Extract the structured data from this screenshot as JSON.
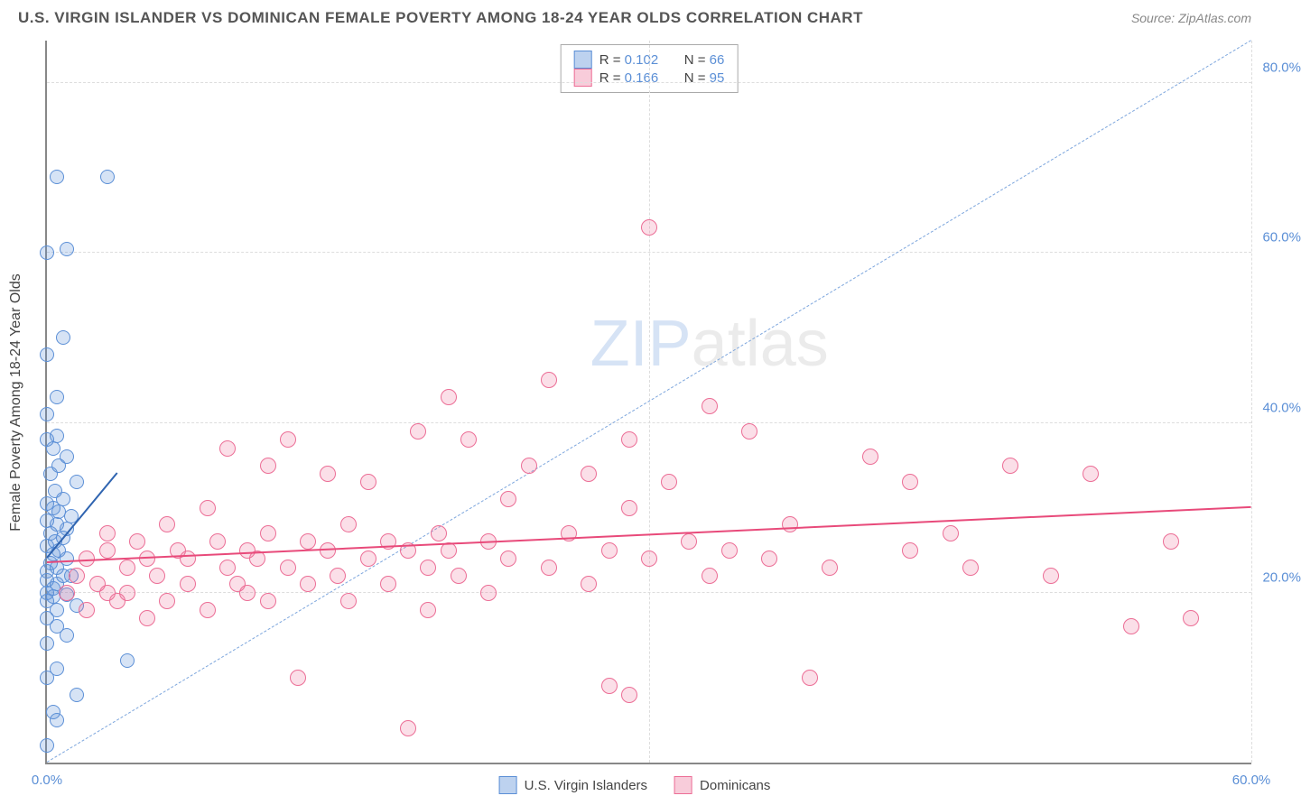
{
  "header": {
    "title": "U.S. VIRGIN ISLANDER VS DOMINICAN FEMALE POVERTY AMONG 18-24 YEAR OLDS CORRELATION CHART",
    "source": "Source: ZipAtlas.com"
  },
  "chart": {
    "type": "scatter",
    "y_axis_title": "Female Poverty Among 18-24 Year Olds",
    "xlim": [
      0,
      60
    ],
    "ylim": [
      0,
      85
    ],
    "x_ticks": [
      {
        "v": 0,
        "label": "0.0%"
      },
      {
        "v": 60,
        "label": "60.0%"
      }
    ],
    "y_ticks": [
      {
        "v": 20,
        "label": "20.0%"
      },
      {
        "v": 40,
        "label": "40.0%"
      },
      {
        "v": 60,
        "label": "60.0%"
      },
      {
        "v": 80,
        "label": "80.0%"
      }
    ],
    "gridlines_h": [
      20,
      40,
      60,
      80
    ],
    "gridlines_v": [
      30,
      60
    ],
    "background_color": "#ffffff",
    "grid_color": "#dddddd",
    "watermark": {
      "part1": "ZIP",
      "part2": "atlas"
    },
    "series": [
      {
        "name": "U.S. Virgin Islanders",
        "marker_size": 16,
        "fill_color": "rgba(91,143,214,0.25)",
        "stroke_color": "#5b8fd6",
        "stroke_width": 1.5,
        "regression": {
          "x1": 0,
          "y1": 24,
          "x2": 3.5,
          "y2": 34,
          "color": "#2f64b0",
          "width": 2.5,
          "dash": "solid"
        },
        "identity_line": {
          "x1": 0,
          "y1": 0,
          "x2": 60,
          "y2": 85,
          "color": "#7da6dd",
          "width": 1.2,
          "dash": "dashed"
        },
        "R": "0.102",
        "N": "66",
        "points": [
          [
            0,
            2
          ],
          [
            0.5,
            5
          ],
          [
            0.3,
            6
          ],
          [
            1.5,
            8
          ],
          [
            0,
            10
          ],
          [
            0.5,
            11
          ],
          [
            4,
            12
          ],
          [
            0,
            14
          ],
          [
            1,
            15
          ],
          [
            0.5,
            16
          ],
          [
            0,
            17
          ],
          [
            0.5,
            18
          ],
          [
            1.5,
            18.5
          ],
          [
            0,
            19
          ],
          [
            0.3,
            19.5
          ],
          [
            1,
            19.8
          ],
          [
            0,
            20
          ],
          [
            0.3,
            20.5
          ],
          [
            0.5,
            21
          ],
          [
            0,
            21.5
          ],
          [
            0.8,
            22
          ],
          [
            1.2,
            22
          ],
          [
            0,
            22.5
          ],
          [
            0.5,
            23
          ],
          [
            0.2,
            23.5
          ],
          [
            1,
            24
          ],
          [
            0.3,
            24.5
          ],
          [
            0.6,
            25
          ],
          [
            0,
            25.5
          ],
          [
            0.4,
            26
          ],
          [
            0.8,
            26.5
          ],
          [
            0.2,
            27
          ],
          [
            1,
            27.5
          ],
          [
            0.5,
            28
          ],
          [
            0,
            28.5
          ],
          [
            1.2,
            29
          ],
          [
            0.6,
            29.5
          ],
          [
            0.3,
            30
          ],
          [
            0,
            30.5
          ],
          [
            0.8,
            31
          ],
          [
            0.4,
            32
          ],
          [
            1.5,
            33
          ],
          [
            0.2,
            34
          ],
          [
            0.6,
            35
          ],
          [
            1,
            36
          ],
          [
            0.3,
            37
          ],
          [
            0,
            38
          ],
          [
            0.5,
            38.5
          ],
          [
            0,
            41
          ],
          [
            0.5,
            43
          ],
          [
            0,
            48
          ],
          [
            0.8,
            50
          ],
          [
            0,
            60
          ],
          [
            1,
            60.5
          ],
          [
            0.5,
            69
          ],
          [
            3,
            69
          ]
        ]
      },
      {
        "name": "Dominicans",
        "marker_size": 18,
        "fill_color": "rgba(236,110,150,0.22)",
        "stroke_color": "#ec6e96",
        "stroke_width": 1.5,
        "regression": {
          "x1": 0,
          "y1": 23.5,
          "x2": 60,
          "y2": 30,
          "color": "#e84a7a",
          "width": 2.5,
          "dash": "solid"
        },
        "R": "0.166",
        "N": "95",
        "points": [
          [
            1,
            20
          ],
          [
            1.5,
            22
          ],
          [
            2,
            18
          ],
          [
            2,
            24
          ],
          [
            2.5,
            21
          ],
          [
            3,
            20
          ],
          [
            3,
            25
          ],
          [
            3,
            27
          ],
          [
            3.5,
            19
          ],
          [
            4,
            23
          ],
          [
            4,
            20
          ],
          [
            4.5,
            26
          ],
          [
            5,
            17
          ],
          [
            5,
            24
          ],
          [
            5.5,
            22
          ],
          [
            6,
            19
          ],
          [
            6,
            28
          ],
          [
            6.5,
            25
          ],
          [
            7,
            21
          ],
          [
            7,
            24
          ],
          [
            8,
            30
          ],
          [
            8,
            18
          ],
          [
            8.5,
            26
          ],
          [
            9,
            23
          ],
          [
            9,
            37
          ],
          [
            9.5,
            21
          ],
          [
            10,
            25
          ],
          [
            10,
            20
          ],
          [
            10.5,
            24
          ],
          [
            11,
            19
          ],
          [
            11,
            27
          ],
          [
            11,
            35
          ],
          [
            12,
            23
          ],
          [
            12,
            38
          ],
          [
            12.5,
            10
          ],
          [
            13,
            26
          ],
          [
            13,
            21
          ],
          [
            14,
            25
          ],
          [
            14,
            34
          ],
          [
            14.5,
            22
          ],
          [
            15,
            28
          ],
          [
            15,
            19
          ],
          [
            16,
            24
          ],
          [
            16,
            33
          ],
          [
            17,
            26
          ],
          [
            17,
            21
          ],
          [
            18,
            4
          ],
          [
            18,
            25
          ],
          [
            18.5,
            39
          ],
          [
            19,
            23
          ],
          [
            19,
            18
          ],
          [
            19.5,
            27
          ],
          [
            20,
            43
          ],
          [
            20,
            25
          ],
          [
            20.5,
            22
          ],
          [
            21,
            38
          ],
          [
            22,
            26
          ],
          [
            22,
            20
          ],
          [
            23,
            31
          ],
          [
            23,
            24
          ],
          [
            24,
            35
          ],
          [
            25,
            23
          ],
          [
            25,
            45
          ],
          [
            26,
            27
          ],
          [
            27,
            21
          ],
          [
            27,
            34
          ],
          [
            28,
            25
          ],
          [
            28,
            9
          ],
          [
            29,
            30
          ],
          [
            29,
            38
          ],
          [
            29,
            8
          ],
          [
            30,
            24
          ],
          [
            30,
            63
          ],
          [
            31,
            33
          ],
          [
            32,
            26
          ],
          [
            33,
            22
          ],
          [
            33,
            42
          ],
          [
            34,
            25
          ],
          [
            35,
            39
          ],
          [
            36,
            24
          ],
          [
            37,
            28
          ],
          [
            38,
            10
          ],
          [
            39,
            23
          ],
          [
            41,
            36
          ],
          [
            43,
            25
          ],
          [
            43,
            33
          ],
          [
            45,
            27
          ],
          [
            46,
            23
          ],
          [
            48,
            35
          ],
          [
            50,
            22
          ],
          [
            52,
            34
          ],
          [
            54,
            16
          ],
          [
            56,
            26
          ],
          [
            57,
            17
          ]
        ]
      }
    ],
    "legend_top": {
      "rows": [
        {
          "swatch_fill": "rgba(91,143,214,0.4)",
          "swatch_stroke": "#5b8fd6",
          "r_label": "R = ",
          "r_val": "0.102",
          "n_label": "N = ",
          "n_val": "66"
        },
        {
          "swatch_fill": "rgba(236,110,150,0.35)",
          "swatch_stroke": "#ec6e96",
          "r_label": "R = ",
          "r_val": "0.166",
          "n_label": "N = ",
          "n_val": "95"
        }
      ]
    },
    "legend_bottom": [
      {
        "swatch_fill": "rgba(91,143,214,0.4)",
        "swatch_stroke": "#5b8fd6",
        "label": "U.S. Virgin Islanders"
      },
      {
        "swatch_fill": "rgba(236,110,150,0.35)",
        "swatch_stroke": "#ec6e96",
        "label": "Dominicans"
      }
    ]
  }
}
